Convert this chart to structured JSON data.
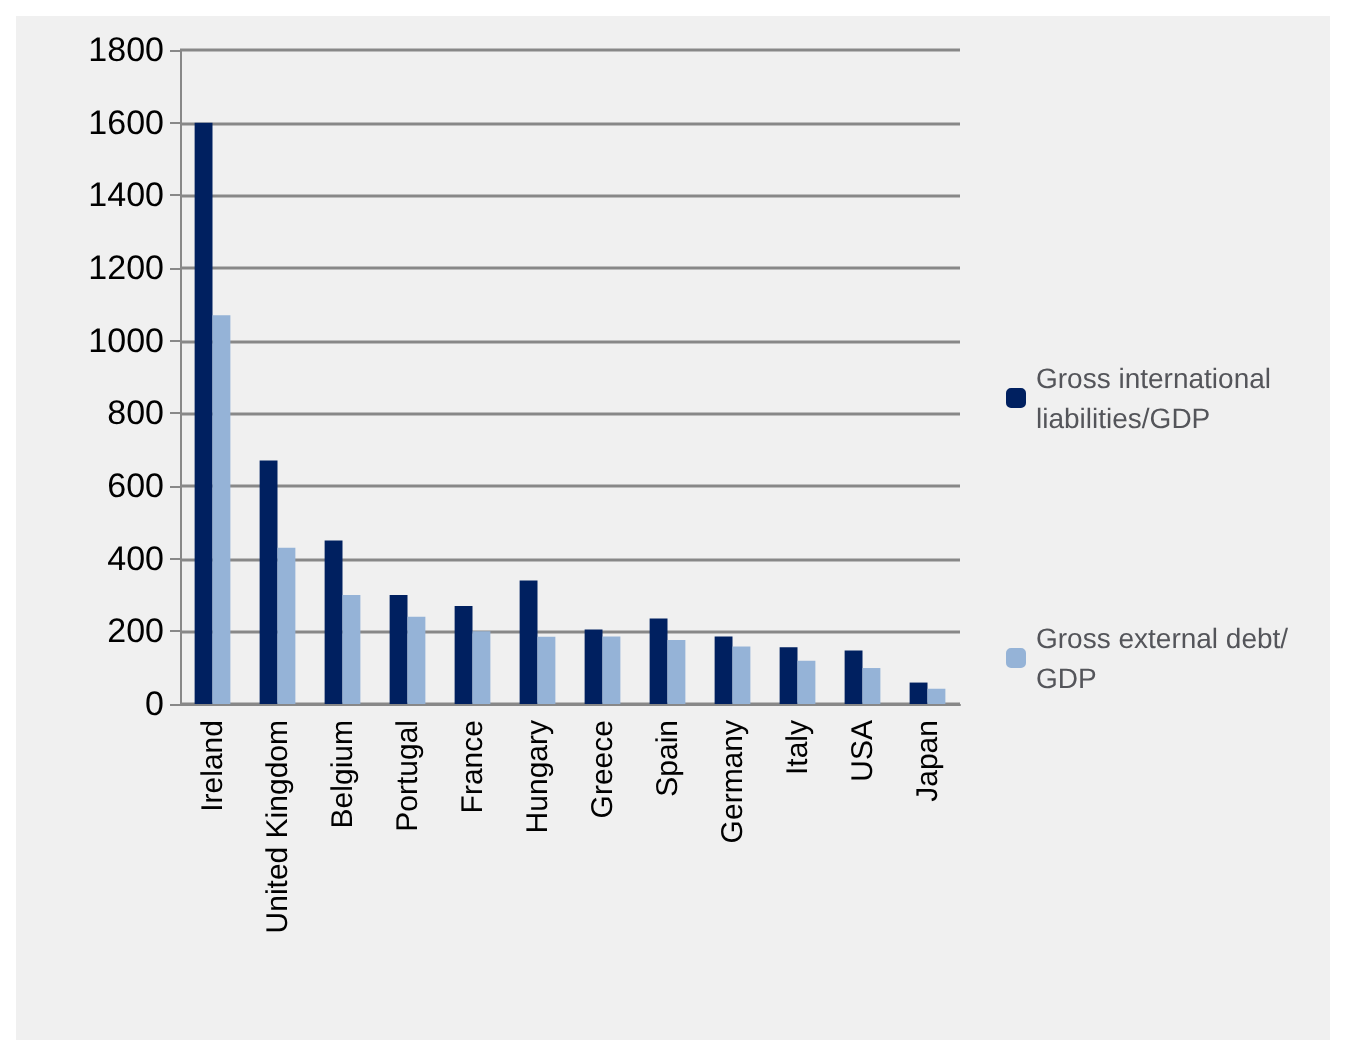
{
  "chart_data": {
    "type": "bar",
    "categories": [
      "Ireland",
      "United Kingdom",
      "Belgium",
      "Portugal",
      "France",
      "Hungary",
      "Greece",
      "Spain",
      "Germany",
      "Italy",
      "USA",
      "Japan"
    ],
    "series": [
      {
        "name": "Gross international liabilities/GDP",
        "color": "#002060",
        "values": [
          1600,
          670,
          450,
          300,
          270,
          340,
          205,
          235,
          186,
          156,
          147,
          59
        ]
      },
      {
        "name": "Gross external debt/GDP",
        "color": "#95b3d7",
        "values": [
          1070,
          430,
          300,
          240,
          200,
          185,
          186,
          176,
          158,
          119,
          99,
          42
        ]
      }
    ],
    "ylim": [
      0,
      1800
    ],
    "yticks": [
      0,
      200,
      400,
      600,
      800,
      1000,
      1200,
      1400,
      1600,
      1800
    ],
    "grid": "y",
    "legend": "right"
  }
}
